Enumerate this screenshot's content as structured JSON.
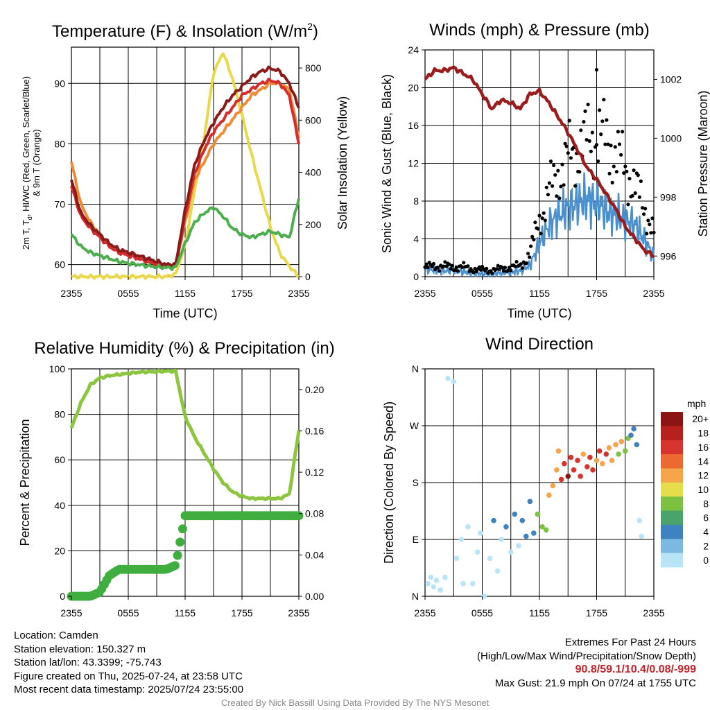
{
  "chart_data": [
    {
      "type": "line",
      "title": "Temperature (F) & Insolation (W/m²)",
      "xlabel": "Time (UTC)",
      "ylabel_left_line1": "2m T, Td, HI/WC (Red, Green, Scarlet/Blue)",
      "ylabel_left_line2": "& 9m T (Orange)",
      "ylabel_right": "Solar Insolation (Yellow)",
      "x_ticks": [
        "2355",
        "0555",
        "1155",
        "1755",
        "2355"
      ],
      "y_left_ticks": [
        60,
        70,
        80,
        90
      ],
      "y_right_ticks": [
        0,
        200,
        400,
        600,
        800
      ],
      "ylim_left": [
        58,
        96
      ],
      "ylim_right": [
        0,
        880
      ],
      "x_hours": [
        0,
        1,
        2,
        3,
        4,
        5,
        6,
        7,
        8,
        9,
        10,
        11,
        12,
        13,
        14,
        15,
        16,
        17,
        18,
        19,
        20,
        21,
        22,
        23,
        24
      ],
      "series": [
        {
          "color": "#e8d84a",
          "axis": "right",
          "values": [
            0,
            0,
            0,
            0,
            0,
            0,
            0,
            0,
            0,
            0,
            0,
            10,
            120,
            330,
            530,
            780,
            860,
            760,
            620,
            470,
            330,
            190,
            90,
            40,
            0
          ]
        },
        {
          "color": "#f08b35",
          "axis": "left",
          "values": [
            77,
            70,
            67,
            65,
            63.5,
            62.5,
            62,
            61.5,
            61,
            60.5,
            60,
            60,
            67,
            74,
            77,
            80,
            82,
            84,
            86,
            88,
            89,
            90,
            90,
            89,
            81
          ]
        },
        {
          "color": "#d42d2d",
          "axis": "left",
          "values": [
            73,
            68,
            66,
            64.5,
            63,
            62,
            61.5,
            61,
            60.5,
            60,
            59.5,
            59.5,
            68,
            75,
            79,
            82,
            84,
            86,
            88,
            89,
            90,
            90.5,
            90,
            88,
            80
          ]
        },
        {
          "color": "#8b1a1a",
          "axis": "left",
          "values": [
            74,
            68.5,
            66.5,
            65,
            63.5,
            62.5,
            62,
            61.5,
            61,
            60.5,
            60,
            60,
            69,
            76.5,
            80.5,
            83.5,
            86,
            88,
            89.5,
            91,
            92,
            92.5,
            92,
            90,
            86
          ]
        },
        {
          "color": "#4cae4c",
          "axis": "left",
          "values": [
            65,
            63,
            62,
            61.5,
            61,
            60.5,
            60.2,
            60,
            59.8,
            59.6,
            59.5,
            59.5,
            63.5,
            67,
            68.5,
            69.5,
            68,
            66,
            65,
            64.5,
            65,
            65.5,
            65,
            64.5,
            71
          ]
        }
      ]
    },
    {
      "type": "scatter",
      "title": "Winds (mph) & Pressure (mb)",
      "xlabel": "Time (UTC)",
      "ylabel_left": "Sonic Wind & Gust (Blue, Black)",
      "ylabel_right": "Station Pressure (Maroon)",
      "x_ticks": [
        "2355",
        "0555",
        "1155",
        "1755",
        "2355"
      ],
      "y_left_ticks": [
        0,
        4,
        8,
        12,
        16,
        20,
        24
      ],
      "y_right_ticks": [
        996,
        998,
        1000,
        1002
      ],
      "ylim_left": [
        0,
        24
      ],
      "ylim_right": [
        995.3,
        1003
      ],
      "x_hours": [
        0,
        1,
        2,
        3,
        4,
        5,
        6,
        7,
        8,
        9,
        10,
        11,
        12,
        13,
        14,
        15,
        16,
        17,
        18,
        19,
        20,
        21,
        22,
        23,
        24
      ],
      "pressure": [
        1002.0,
        1002.3,
        1002.3,
        1002.4,
        1002.2,
        1002.0,
        1001.5,
        1001.0,
        1001.3,
        1001.2,
        1001.0,
        1001.5,
        1001.6,
        1001.2,
        1000.7,
        1000.2,
        999.6,
        999.0,
        998.6,
        998.1,
        997.6,
        997.0,
        996.6,
        996.2,
        996.0
      ],
      "wind": [
        0.8,
        0.7,
        0.6,
        0.7,
        0.5,
        0.4,
        0.3,
        0.3,
        0.4,
        0.5,
        0.6,
        1.2,
        3.5,
        5.5,
        6.5,
        7.3,
        7.8,
        8.2,
        7.8,
        7.0,
        6.5,
        6.0,
        5.5,
        4.0,
        2.0
      ],
      "gust": [
        1.0,
        1.1,
        1.1,
        1.0,
        1.0,
        0.8,
        0.7,
        0.7,
        0.8,
        1.0,
        1.1,
        2.5,
        6.0,
        9.0,
        11.0,
        12.5,
        13.5,
        14.5,
        15.0,
        14.5,
        13.0,
        11.5,
        9.5,
        7.5,
        4.5
      ],
      "max_gust": {
        "hour": 18,
        "value": 21.9
      },
      "series_colors": {
        "wind": "#4a90cf",
        "gust": "#000000",
        "pressure": "#9a1c1c"
      }
    },
    {
      "type": "line",
      "title": "Relative Humidity (%) & Precipitation (in)",
      "ylabel_left": "Percent & Precipitation",
      "x_ticks": [
        "2355",
        "0555",
        "1155",
        "1755",
        "2355"
      ],
      "y_left_ticks": [
        0,
        20,
        40,
        60,
        80,
        100
      ],
      "y_right_ticks": [
        "0.00",
        "0.04",
        "0.08",
        "0.12",
        "0.16",
        "0.20"
      ],
      "ylim_left": [
        0,
        100
      ],
      "ylim_right": [
        0,
        0.22
      ],
      "x_hours": [
        0,
        1,
        2,
        3,
        4,
        5,
        6,
        7,
        8,
        9,
        10,
        11,
        12,
        13,
        14,
        15,
        16,
        17,
        18,
        19,
        20,
        21,
        22,
        23,
        24
      ],
      "rh": [
        74,
        85,
        93,
        96,
        97,
        97.5,
        98,
        98.5,
        98.7,
        98.8,
        99,
        99,
        79,
        70,
        63,
        56,
        50,
        46,
        44,
        43,
        43,
        43,
        43,
        45,
        73
      ],
      "precip": [
        0,
        0,
        0,
        0.004,
        0.02,
        0.026,
        0.026,
        0.026,
        0.026,
        0.026,
        0.026,
        0.03,
        0.078,
        0.078,
        0.078,
        0.078,
        0.078,
        0.078,
        0.078,
        0.078,
        0.078,
        0.078,
        0.078,
        0.078,
        0.078
      ],
      "series_colors": {
        "rh": "#8cc63f",
        "precip": "#3fae3f"
      }
    },
    {
      "type": "scatter",
      "title": "Wind Direction",
      "ylabel": "Direction (Colored By Speed)",
      "x_ticks": [
        "2355",
        "0555",
        "1155",
        "1755",
        "2355"
      ],
      "y_ticks": [
        "N",
        "E",
        "S",
        "W",
        "N"
      ],
      "ylim_deg": [
        0,
        360
      ],
      "legend_title": "mph",
      "legend_labels": [
        "0",
        "2",
        "4",
        "6",
        "8",
        "10",
        "12",
        "14",
        "16",
        "18",
        "20+"
      ],
      "legend_colors": [
        "#b9e3f7",
        "#7bb9e3",
        "#3f82c0",
        "#49a36a",
        "#7dc142",
        "#e6dd4a",
        "#f6a54a",
        "#ec6a32",
        "#d6342c",
        "#b8201e",
        "#8b1414"
      ],
      "dir_points": [
        [
          0.3,
          20,
          0
        ],
        [
          0.6,
          30,
          0
        ],
        [
          0.9,
          15,
          0
        ],
        [
          1.2,
          25,
          0
        ],
        [
          1.6,
          10,
          0
        ],
        [
          2.1,
          30,
          0
        ],
        [
          2.4,
          345,
          0
        ],
        [
          3.0,
          340,
          0
        ],
        [
          3.3,
          60,
          0
        ],
        [
          3.8,
          90,
          0
        ],
        [
          4.0,
          20,
          0
        ],
        [
          4.5,
          110,
          0
        ],
        [
          5.0,
          20,
          0
        ],
        [
          5.5,
          70,
          0
        ],
        [
          5.8,
          100,
          0
        ],
        [
          6.2,
          0,
          0
        ],
        [
          6.8,
          60,
          0
        ],
        [
          7.2,
          120,
          1
        ],
        [
          7.6,
          40,
          0
        ],
        [
          8.0,
          90,
          0
        ],
        [
          8.5,
          110,
          1
        ],
        [
          9.0,
          70,
          0
        ],
        [
          9.4,
          130,
          1
        ],
        [
          9.8,
          80,
          0
        ],
        [
          10.2,
          120,
          1
        ],
        [
          10.6,
          95,
          1
        ],
        [
          11.0,
          150,
          1
        ],
        [
          11.4,
          100,
          1
        ],
        [
          11.8,
          130,
          2
        ],
        [
          12.3,
          110,
          2
        ],
        [
          12.7,
          105,
          2
        ],
        [
          13.0,
          160,
          3
        ],
        [
          13.4,
          175,
          3
        ],
        [
          13.8,
          200,
          3
        ],
        [
          14.0,
          230,
          3
        ],
        [
          14.3,
          185,
          4
        ],
        [
          14.6,
          210,
          4
        ],
        [
          15.0,
          190,
          5
        ],
        [
          15.3,
          220,
          4
        ],
        [
          15.6,
          200,
          4
        ],
        [
          16.0,
          215,
          4
        ],
        [
          16.3,
          190,
          4
        ],
        [
          16.6,
          225,
          3
        ],
        [
          17.0,
          205,
          4
        ],
        [
          17.3,
          220,
          4
        ],
        [
          17.6,
          200,
          4
        ],
        [
          18.0,
          215,
          3
        ],
        [
          18.3,
          230,
          4
        ],
        [
          18.6,
          210,
          3
        ],
        [
          19.0,
          225,
          4
        ],
        [
          19.3,
          235,
          3
        ],
        [
          19.6,
          215,
          3
        ],
        [
          20.0,
          240,
          3
        ],
        [
          20.3,
          225,
          2
        ],
        [
          20.6,
          245,
          3
        ],
        [
          21.0,
          230,
          2
        ],
        [
          21.3,
          250,
          2
        ],
        [
          21.6,
          255,
          1
        ],
        [
          21.9,
          265,
          1
        ],
        [
          22.2,
          240,
          1
        ],
        [
          22.5,
          120,
          0
        ],
        [
          22.7,
          95,
          0
        ]
      ]
    }
  ],
  "footer_left": {
    "location": "Location: Camden",
    "elevation": "Station elevation: 150.327 m",
    "latlon": "Station lat/lon: 43.3399; -75.743",
    "created": "Figure created on Thu, 2025-07-24, at 23:58 UTC",
    "recent": "Most recent data timestamp: 2025/07/24 23:55:00"
  },
  "footer_right": {
    "line1": "Extremes For Past 24 Hours",
    "line2": "(High/Low/Max Wind/Precipitation/Snow Depth)",
    "values": "90.8/59.1/10.4/0.08/-999",
    "gust": "Max Gust: 21.9 mph On 07/24 at 1755 UTC"
  },
  "credit": "Created By Nick Bassill Using Data Provided By The NYS Mesonet"
}
